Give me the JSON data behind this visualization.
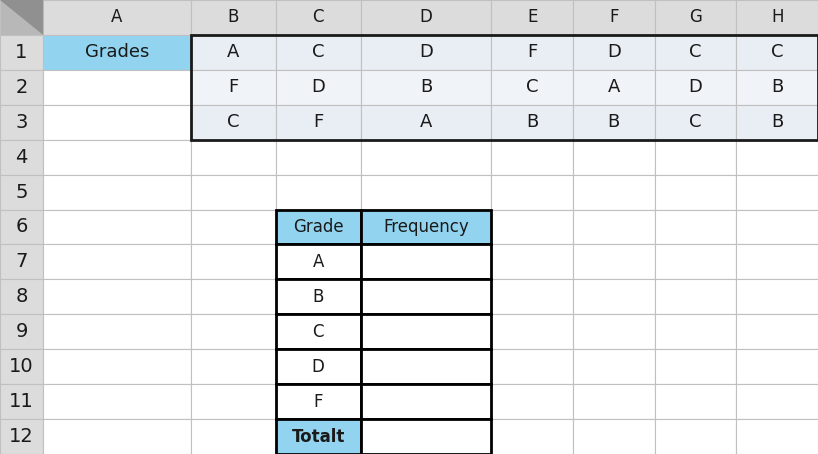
{
  "col_headers": [
    "A",
    "B",
    "C",
    "D",
    "E",
    "F",
    "G",
    "H"
  ],
  "row_headers": [
    "1",
    "2",
    "3",
    "4",
    "5",
    "6",
    "7",
    "8",
    "9",
    "10",
    "11",
    "12"
  ],
  "data_cells": {
    "A1": "Grades",
    "B1": "A",
    "C1": "C",
    "D1": "D",
    "E1": "F",
    "F1": "D",
    "G1": "C",
    "H1": "C",
    "B2": "F",
    "C2": "D",
    "D2": "B",
    "E2": "C",
    "F2": "A",
    "G2": "D",
    "H2": "B",
    "B3": "C",
    "C3": "F",
    "D3": "A",
    "E3": "B",
    "F3": "B",
    "G3": "C",
    "H3": "B"
  },
  "freq_table": {
    "header": [
      "Grade",
      "Frequency"
    ],
    "rows": [
      "A",
      "B",
      "C",
      "D",
      "F"
    ],
    "footer": "Totalt"
  },
  "colors": {
    "col_header_bg": "#dcdcdc",
    "row_header_bg": "#dcdcdc",
    "corner_bg": "#b8b8b8",
    "cyan_light": "#92d4f0",
    "data_region_bg1": "#e8eef4",
    "data_region_bg2": "#f0f4f8",
    "white": "#ffffff",
    "grid_line": "#c0c0c0",
    "thick_line": "#000000",
    "data_border": "#1a1a1a",
    "row_header_text": "#1a1a1a",
    "col_header_text": "#1a1a1a"
  },
  "figsize": [
    8.18,
    4.54
  ],
  "dpi": 100,
  "n_rows": 12,
  "n_cols": 8,
  "col_header_fontsize": 12,
  "row_header_fontsize": 14,
  "data_fontsize": 13,
  "freq_header_fontsize": 12,
  "freq_data_fontsize": 12,
  "freq_footer_fontsize": 12
}
